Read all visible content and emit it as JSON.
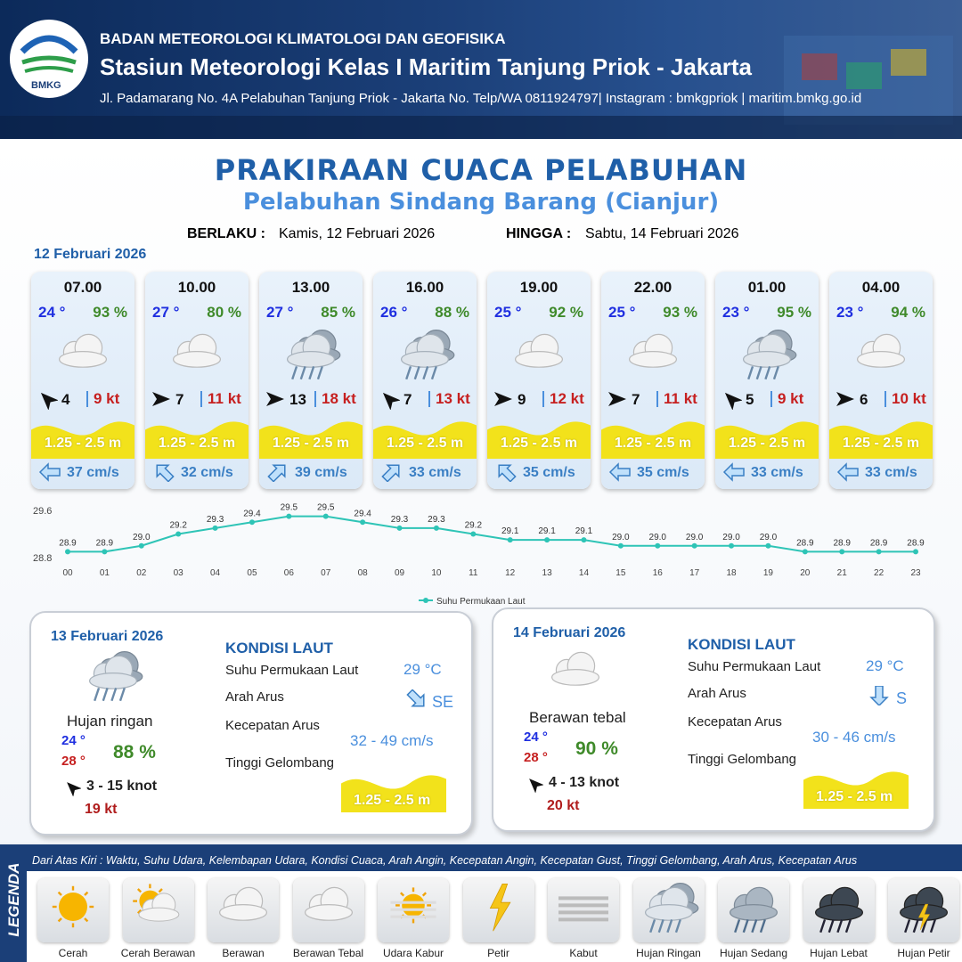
{
  "header": {
    "logo_text": "BMKG",
    "agency": "BADAN METEOROLOGI KLIMATOLOGI DAN GEOFISIKA",
    "station": "Stasiun Meteorologi Kelas I Maritim Tanjung Priok - Jakarta",
    "address": "Jl. Padamarang No. 4A Pelabuhan Tanjung Priok - Jakarta No. Telp/WA 0811924797| Instagram : bmkgpriok | maritim.bmkg.go.id"
  },
  "title": "PRAKIRAAN CUACA PELABUHAN",
  "subtitle": "Pelabuhan Sindang Barang (Cianjur)",
  "validity": {
    "from_label": "BERLAKU :",
    "from": "Kamis, 12 Februari 2026",
    "to_label": "HINGGA :",
    "to": "Sabtu, 14 Februari 2026"
  },
  "day1": {
    "date": "12 Februari 2026",
    "forecasts": [
      {
        "time": "07.00",
        "temp": "24 °",
        "humidity": "93 %",
        "wind": "4",
        "gust": "9 kt",
        "wave": "1.25 - 2.5 m",
        "current": "37 cm/s"
      },
      {
        "time": "10.00",
        "temp": "27 °",
        "humidity": "80 %",
        "wind": "7",
        "gust": "11 kt",
        "wave": "1.25 - 2.5 m",
        "current": "32 cm/s"
      },
      {
        "time": "13.00",
        "temp": "27 °",
        "humidity": "85 %",
        "wind": "13",
        "gust": "18 kt",
        "wave": "1.25 - 2.5 m",
        "current": "39 cm/s"
      },
      {
        "time": "16.00",
        "temp": "26 °",
        "humidity": "88 %",
        "wind": "7",
        "gust": "13 kt",
        "wave": "1.25 - 2.5 m",
        "current": "33 cm/s"
      },
      {
        "time": "19.00",
        "temp": "25 °",
        "humidity": "92 %",
        "wind": "9",
        "gust": "12 kt",
        "wave": "1.25 - 2.5 m",
        "current": "35 cm/s"
      },
      {
        "time": "22.00",
        "temp": "25 °",
        "humidity": "93 %",
        "wind": "7",
        "gust": "11 kt",
        "wave": "1.25 - 2.5 m",
        "current": "35 cm/s"
      },
      {
        "time": "01.00",
        "temp": "23 °",
        "humidity": "95 %",
        "wind": "5",
        "gust": "9 kt",
        "wave": "1.25 - 2.5 m",
        "current": "33 cm/s"
      },
      {
        "time": "04.00",
        "temp": "23 °",
        "humidity": "94 %",
        "wind": "6",
        "gust": "10 kt",
        "wave": "1.25 - 2.5 m",
        "current": "33 cm/s"
      }
    ]
  },
  "chart_data": {
    "type": "line",
    "categories": [
      "00",
      "01",
      "02",
      "03",
      "04",
      "05",
      "06",
      "07",
      "08",
      "09",
      "10",
      "11",
      "12",
      "13",
      "14",
      "15",
      "16",
      "17",
      "18",
      "19",
      "20",
      "21",
      "22",
      "23"
    ],
    "series": [
      {
        "name": "Suhu Permukaan Laut",
        "color": "#2ec4b6",
        "values": [
          28.9,
          28.9,
          29.0,
          29.2,
          29.3,
          29.4,
          29.5,
          29.5,
          29.4,
          29.3,
          29.3,
          29.2,
          29.1,
          29.1,
          29.1,
          29.0,
          29.0,
          29.0,
          29.0,
          29.0,
          28.9,
          28.9,
          28.9,
          28.9
        ],
        "value_labels": [
          "28.9",
          "28.9",
          "29.0",
          "29.2",
          "29.3",
          "29.4",
          "29.5",
          "29.5",
          "29.4",
          "29.3",
          "29.3",
          "29.2",
          "29.1",
          "29.1",
          "29.1",
          "29.0",
          "29.0",
          "29.0",
          "29.0",
          "29.0",
          "28.9",
          "28.9",
          "28.9",
          "28.9"
        ]
      }
    ],
    "ylim": [
      28.8,
      29.6
    ],
    "yticks": [
      28.8,
      29.6
    ],
    "grid": false
  },
  "days": [
    {
      "date": "13 Februari 2026",
      "weather": "Hujan ringan",
      "temp_min": "24 °",
      "temp_max": "28 °",
      "humidity": "88 %",
      "wind": "3  - 15 knot",
      "gust": "19 kt",
      "heading": "KONDISI LAUT",
      "sst_label": "Suhu Permukaan Laut",
      "sst": "29 °C",
      "dir_label": "Arah Arus",
      "dir": "SE",
      "speed_label": "Kecepatan Arus",
      "speed": "32 - 49 cm/s",
      "wave_label": "Tinggi Gelombang",
      "wave": "1.25 - 2.5 m"
    },
    {
      "date": "14 Februari 2026",
      "weather": "Berawan tebal",
      "temp_min": "24 °",
      "temp_max": "28 °",
      "humidity": "90 %",
      "wind": "4  - 13 knot",
      "gust": "20 kt",
      "heading": "KONDISI LAUT",
      "sst_label": "Suhu Permukaan Laut",
      "sst": "29 °C",
      "dir_label": "Arah Arus",
      "dir": "S",
      "speed_label": "Kecepatan Arus",
      "speed": "30 - 46 cm/s",
      "wave_label": "Tinggi Gelombang",
      "wave": "1.25 - 2.5 m"
    }
  ],
  "legend": {
    "title": "LEGENDA",
    "description": "Dari Atas Kiri : Waktu, Suhu Udara, Kelembapan Udara, Kondisi Cuaca, Arah Angin, Kecepatan Angin, Kecepatan Gust, Tinggi Gelombang, Arah Arus, Kecepatan Arus",
    "items": [
      "Cerah",
      "Cerah Berawan",
      "Berawan",
      "Berawan Tebal",
      "Udara Kabur",
      "Petir",
      "Kabut",
      "Hujan Ringan",
      "Hujan Sedang",
      "Hujan Lebat",
      "Hujan Petir"
    ]
  }
}
